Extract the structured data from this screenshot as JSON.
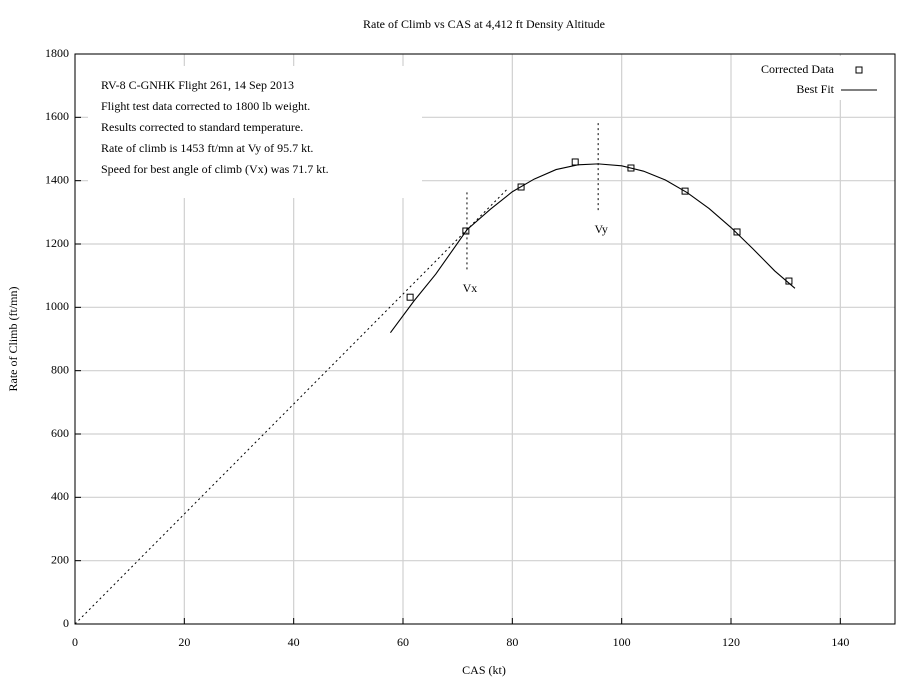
{
  "chart_data": {
    "type": "scatter",
    "title": "Rate of Climb vs CAS at 4,412 ft Density Altitude",
    "xlabel": "CAS (kt)",
    "ylabel": "Rate of Climb (ft/mn)",
    "xlim": [
      0,
      150
    ],
    "ylim": [
      0,
      1800
    ],
    "xticks": [
      0,
      20,
      40,
      60,
      80,
      100,
      120,
      140
    ],
    "yticks": [
      0,
      200,
      400,
      600,
      800,
      1000,
      1200,
      1400,
      1600,
      1800
    ],
    "grid": true,
    "legend": "top-right",
    "series": [
      {
        "name": "Corrected Data",
        "color": "#000000",
        "marker": "square",
        "x": [
          61.3,
          71.5,
          81.6,
          91.5,
          101.7,
          111.6,
          121.1,
          130.6
        ],
        "values": [
          1032,
          1241,
          1380,
          1459,
          1440,
          1367,
          1238,
          1083
        ]
      },
      {
        "name": "Best Fit",
        "color": "#000000",
        "marker": "line",
        "x": [
          57.7,
          62,
          66,
          71.7,
          76,
          80,
          84,
          88,
          92,
          95.7,
          100,
          104,
          108,
          112,
          116,
          120,
          124,
          128,
          131.7
        ],
        "values": [
          920,
          1020,
          1105,
          1245,
          1310,
          1365,
          1405,
          1435,
          1450,
          1453,
          1447,
          1430,
          1402,
          1362,
          1312,
          1252,
          1185,
          1115,
          1060
        ]
      }
    ],
    "tangent": {
      "color": "#000000",
      "x": [
        0,
        79
      ],
      "values": [
        0,
        1372
      ]
    },
    "speed_markers": [
      {
        "label": "Vx",
        "x": 71.7,
        "y_range": [
          1120,
          1370
        ]
      },
      {
        "label": "Vy",
        "x": 95.7,
        "y_range": [
          1307,
          1591
        ]
      }
    ],
    "annotations": [
      "RV-8 C-GNHK Flight 261, 14 Sep 2013",
      "Flight test data corrected to 1800 lb weight.",
      "Results corrected to standard temperature.",
      "Rate of climb is 1453 ft/mn at Vy of 95.7 kt.",
      "Speed for best angle of climb (Vx) was 71.7 kt."
    ]
  }
}
